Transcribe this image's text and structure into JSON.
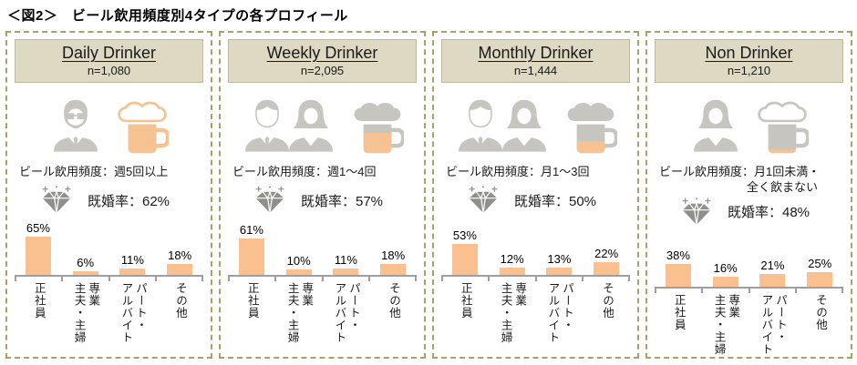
{
  "page_title": "＜図2＞　ビール飲用頻度別4タイプの各プロフィール",
  "colors": {
    "bar_orange": "#FAC090",
    "beer_orange": "#F6C291",
    "icon_gray": "#C7C5BF",
    "header_bg": "#DDD9C3",
    "panel_border_khaki": "#ABA06B",
    "axis_gray": "#9E9E9E",
    "diamond_gray": "#8F8F8C"
  },
  "panels": [
    {
      "title": "Daily Drinker",
      "n_label": "n=1,080",
      "people_icons": [
        "man-with-glasses"
      ],
      "frequency_line1": "ビール飲用頻度：週5回以上",
      "frequency_line2": "",
      "married_label": "既婚率：62%",
      "beer": {
        "fill_percent": 100,
        "foam_fill": "#FFFFFF",
        "foam_stroke": "#F6C291",
        "body_color": "#F6C291",
        "outline_color": "#F6C291"
      }
    },
    {
      "title": "Weekly Drinker",
      "n_label": "n=2,095",
      "people_icons": [
        "man",
        "woman"
      ],
      "frequency_line1": "ビール飲用頻度：週1～4回",
      "frequency_line2": "",
      "married_label": "既婚率：57%",
      "beer": {
        "fill_percent": 70,
        "foam_fill": "#C7C5BF",
        "foam_stroke": "none",
        "body_color": "#C7C5BF",
        "outline_color": "#C7C5BF"
      }
    },
    {
      "title": "Monthly Drinker",
      "n_label": "n=1,444",
      "people_icons": [
        "man",
        "woman"
      ],
      "frequency_line1": "ビール飲用頻度：月1～3回",
      "frequency_line2": "",
      "married_label": "既婚率：50%",
      "beer": {
        "fill_percent": 40,
        "foam_fill": "#C7C5BF",
        "foam_stroke": "none",
        "body_color": "#C7C5BF",
        "outline_color": "#C7C5BF"
      }
    },
    {
      "title": "Non Drinker",
      "n_label": "n=1,210",
      "people_icons": [
        "woman"
      ],
      "frequency_line1": "ビール飲用頻度：月1回未満・",
      "frequency_line2": "全く飲まない",
      "married_label": "既婚率：48%",
      "beer": {
        "fill_percent": 13,
        "foam_fill": "#FFFFFF",
        "foam_stroke": "#C7C5BF",
        "body_color": "#C7C5BF",
        "outline_color": "#C7C5BF"
      }
    }
  ],
  "chart_data": [
    {
      "type": "bar",
      "title": "Daily Drinker",
      "n": 1080,
      "categories": [
        "正社員",
        "専業主夫・主婦",
        "パート・アルバイト",
        "その他"
      ],
      "category_display": [
        "正社員",
        "専業\n主夫・主婦",
        "パート・\nアルバイト",
        "その他"
      ],
      "values": [
        65,
        6,
        11,
        18
      ],
      "value_labels": [
        "65%",
        "6%",
        "11%",
        "18%"
      ],
      "unit": "%",
      "xlabel": "",
      "ylabel": "",
      "ylim": [
        0,
        70
      ],
      "bar_color": "#FAC090",
      "grid": false,
      "legend": false
    },
    {
      "type": "bar",
      "title": "Weekly Drinker",
      "n": 2095,
      "categories": [
        "正社員",
        "専業主夫・主婦",
        "パート・アルバイト",
        "その他"
      ],
      "category_display": [
        "正社員",
        "専業\n主夫・主婦",
        "パート・\nアルバイト",
        "その他"
      ],
      "values": [
        61,
        10,
        11,
        18
      ],
      "value_labels": [
        "61%",
        "10%",
        "11%",
        "18%"
      ],
      "unit": "%",
      "xlabel": "",
      "ylabel": "",
      "ylim": [
        0,
        70
      ],
      "bar_color": "#FAC090",
      "grid": false,
      "legend": false
    },
    {
      "type": "bar",
      "title": "Monthly Drinker",
      "n": 1444,
      "categories": [
        "正社員",
        "専業主夫・主婦",
        "パート・アルバイト",
        "その他"
      ],
      "category_display": [
        "正社員",
        "専業\n主夫・主婦",
        "パート・\nアルバイト",
        "その他"
      ],
      "values": [
        53,
        12,
        13,
        22
      ],
      "value_labels": [
        "53%",
        "12%",
        "13%",
        "22%"
      ],
      "unit": "%",
      "xlabel": "",
      "ylabel": "",
      "ylim": [
        0,
        70
      ],
      "bar_color": "#FAC090",
      "grid": false,
      "legend": false
    },
    {
      "type": "bar",
      "title": "Non Drinker",
      "n": 1210,
      "categories": [
        "正社員",
        "専業主夫・主婦",
        "パート・アルバイト",
        "その他"
      ],
      "category_display": [
        "正社員",
        "専業\n主夫・主婦",
        "パート・\nアルバイト",
        "その他"
      ],
      "values": [
        38,
        16,
        21,
        25
      ],
      "value_labels": [
        "38%",
        "16%",
        "21%",
        "25%"
      ],
      "unit": "%",
      "xlabel": "",
      "ylabel": "",
      "ylim": [
        0,
        70
      ],
      "bar_color": "#FAC090",
      "grid": false,
      "legend": false
    }
  ]
}
